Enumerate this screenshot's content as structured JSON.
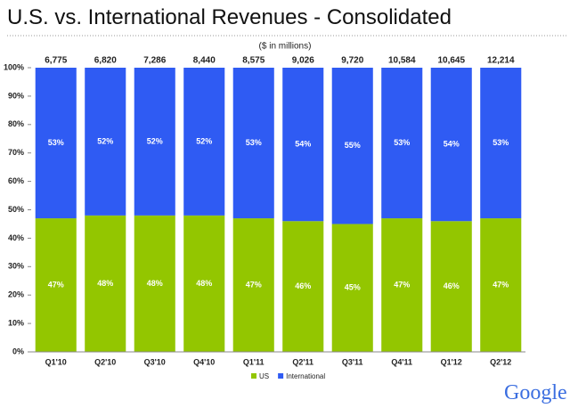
{
  "chart_data": {
    "type": "stacked_percent_bar",
    "title": "U.S. vs. International Revenues - Consolidated",
    "subtitle": "($ in millions)",
    "categories": [
      "Q1'10",
      "Q2'10",
      "Q3'10",
      "Q4'10",
      "Q1'11",
      "Q2'11",
      "Q3'11",
      "Q4'11",
      "Q1'12",
      "Q2'12"
    ],
    "series": [
      {
        "name": "US",
        "color": "#93c600",
        "values": [
          47,
          48,
          48,
          48,
          47,
          46,
          45,
          47,
          46,
          47
        ],
        "value_labels": [
          "47%",
          "48%",
          "48%",
          "48%",
          "47%",
          "46%",
          "45%",
          "47%",
          "46%",
          "47%"
        ]
      },
      {
        "name": "International",
        "color": "#2f5bf3",
        "values": [
          53,
          52,
          52,
          52,
          53,
          54,
          55,
          53,
          54,
          53
        ],
        "value_labels": [
          "53%",
          "52%",
          "52%",
          "52%",
          "53%",
          "54%",
          "55%",
          "53%",
          "54%",
          "53%"
        ]
      }
    ],
    "totals": [
      6775,
      6820,
      7286,
      8440,
      8575,
      9026,
      9720,
      10584,
      10645,
      12214
    ],
    "total_labels": [
      "6,775",
      "6,820",
      "7,286",
      "8,440",
      "8,575",
      "9,026",
      "9,720",
      "10,584",
      "10,645",
      "12,214"
    ],
    "ylim": [
      0,
      100
    ],
    "yticks": [
      {
        "value": 0,
        "label": "0%"
      },
      {
        "value": 10,
        "label": "10%"
      },
      {
        "value": 20,
        "label": "20%"
      },
      {
        "value": 30,
        "label": "30%"
      },
      {
        "value": 40,
        "label": "40%"
      },
      {
        "value": 50,
        "label": "50%"
      },
      {
        "value": 60,
        "label": "60%"
      },
      {
        "value": 70,
        "label": "70%"
      },
      {
        "value": 80,
        "label": "80%"
      },
      {
        "value": 90,
        "label": "90%"
      },
      {
        "value": 100,
        "label": "100%"
      }
    ],
    "grid": false,
    "legend": "bottom",
    "logo": "Google"
  }
}
